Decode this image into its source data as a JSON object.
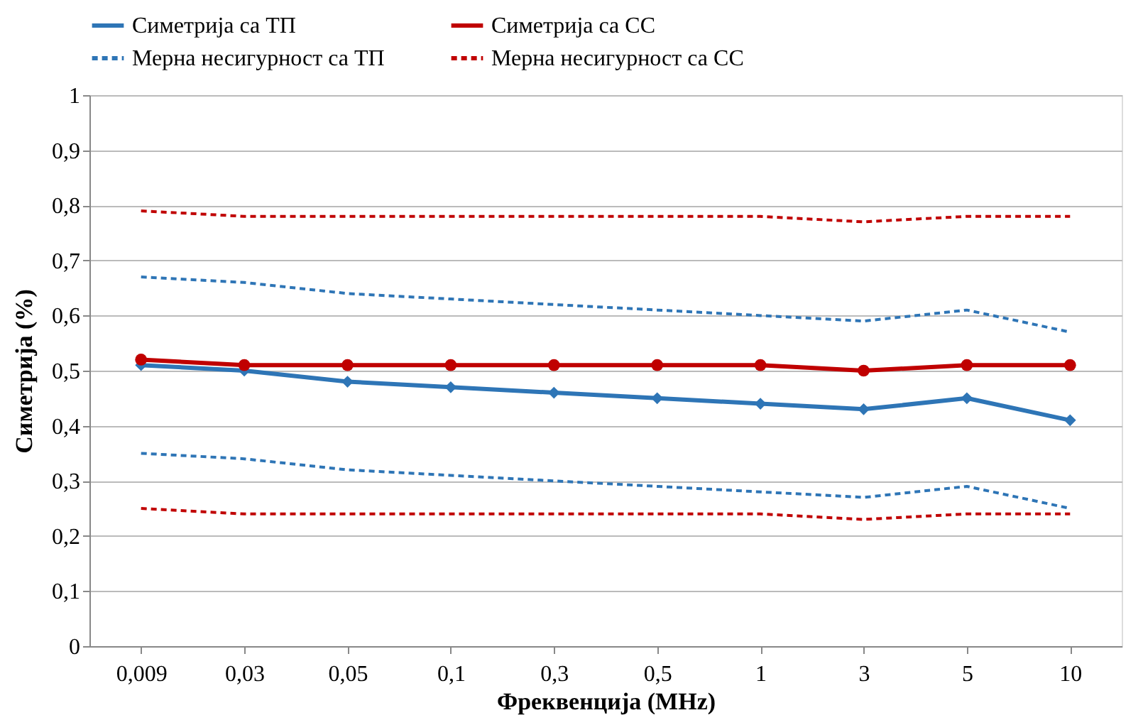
{
  "chart_data": {
    "type": "line",
    "xlabel": "Фреквенција (MHz)",
    "ylabel": "Симетрија (%)",
    "categories": [
      "0,009",
      "0,03",
      "0,05",
      "0,1",
      "0,3",
      "0,5",
      "1",
      "3",
      "5",
      "10"
    ],
    "ylim": [
      0,
      1
    ],
    "yticks": [
      0,
      {
        "value": 0.1,
        "label": "0,1"
      },
      {
        "value": 0.2,
        "label": "0,2"
      },
      {
        "value": 0.3,
        "label": "0,3"
      },
      {
        "value": 0.4,
        "label": "0,4"
      },
      {
        "value": 0.5,
        "label": "0,5"
      },
      {
        "value": 0.6,
        "label": "0,6"
      },
      {
        "value": 0.7,
        "label": "0,7"
      },
      {
        "value": 0.8,
        "label": "0,8"
      },
      {
        "value": 0.9,
        "label": "0,9"
      },
      1
    ],
    "grid": "y",
    "legend": "top",
    "series": [
      {
        "name": "Симетрија са ТП",
        "color": "#2e75b6",
        "marker": "diamond",
        "line_style": "solid",
        "values": [
          0.51,
          0.5,
          0.48,
          0.47,
          0.46,
          0.45,
          0.44,
          0.43,
          0.45,
          0.41
        ]
      },
      {
        "name": "Симетрија са СС",
        "color": "#c00000",
        "marker": "circle",
        "line_style": "solid",
        "values": [
          0.52,
          0.51,
          0.51,
          0.51,
          0.51,
          0.51,
          0.51,
          0.5,
          0.51,
          0.51
        ]
      },
      {
        "name": "Мерна несигурност са ТП",
        "color": "#2e75b6",
        "marker": "none",
        "line_style": "dashed",
        "values": [
          0.67,
          0.66,
          0.64,
          0.63,
          0.62,
          0.61,
          0.6,
          0.59,
          0.61,
          0.57
        ]
      },
      {
        "name": "Мерна несигурност са СС",
        "color": "#c00000",
        "marker": "none",
        "line_style": "dashed",
        "values": [
          0.79,
          0.78,
          0.78,
          0.78,
          0.78,
          0.78,
          0.78,
          0.77,
          0.78,
          0.78
        ]
      },
      {
        "color": "#2e75b6",
        "marker": "none",
        "line_style": "dashed",
        "values": [
          0.35,
          0.34,
          0.32,
          0.31,
          0.3,
          0.29,
          0.28,
          0.27,
          0.29,
          0.25
        ]
      },
      {
        "color": "#c00000",
        "marker": "none",
        "line_style": "dashed",
        "values": [
          0.25,
          0.24,
          0.24,
          0.24,
          0.24,
          0.24,
          0.24,
          0.23,
          0.24,
          0.24
        ]
      }
    ]
  }
}
